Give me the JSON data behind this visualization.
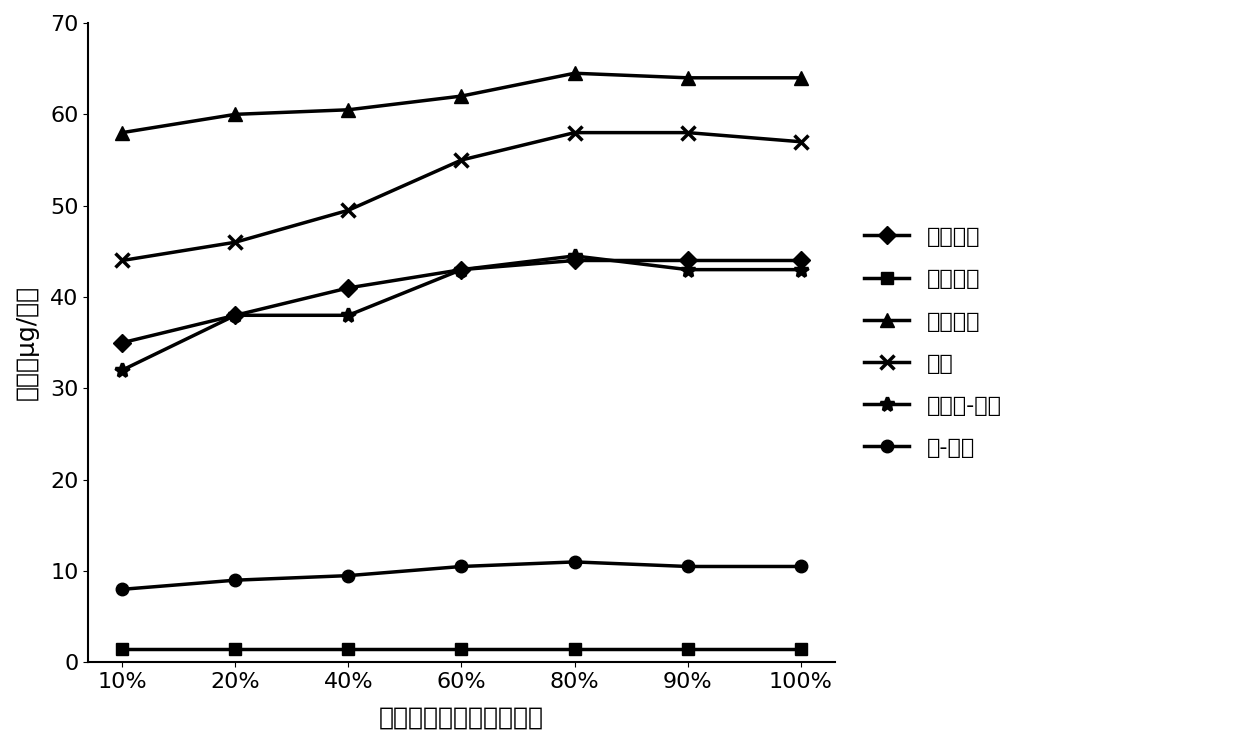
{
  "x_labels": [
    "10%",
    "20%",
    "40%",
    "60%",
    "80%",
    "90%",
    "100%"
  ],
  "x_values": [
    0,
    1,
    2,
    3,
    4,
    5,
    6
  ],
  "series": [
    {
      "name": "对苯二酚",
      "values": [
        35,
        38,
        41,
        43,
        44,
        44,
        44
      ],
      "marker": "D",
      "color": "#000000",
      "linewidth": 2.5,
      "markersize": 9,
      "markerfacecolor": "#000000"
    },
    {
      "name": "间苯二酚",
      "values": [
        1.5,
        1.5,
        1.5,
        1.5,
        1.5,
        1.5,
        1.5
      ],
      "marker": "s",
      "color": "#000000",
      "linewidth": 2.5,
      "markersize": 9,
      "markerfacecolor": "#000000"
    },
    {
      "name": "邻苯二酚",
      "values": [
        58,
        60,
        60.5,
        62,
        64.5,
        64,
        64
      ],
      "marker": "^",
      "color": "#000000",
      "linewidth": 2.5,
      "markersize": 10,
      "markerfacecolor": "#000000"
    },
    {
      "name": "苯酚",
      "values": [
        44,
        46,
        49.5,
        55,
        58,
        58,
        57
      ],
      "marker": "x",
      "color": "#000000",
      "linewidth": 2.5,
      "markersize": 10,
      "markerfacecolor": "#000000"
    },
    {
      "name": "间、对-甲酚",
      "values": [
        32,
        38,
        38,
        43,
        44.5,
        43,
        43
      ],
      "marker": "*",
      "color": "#000000",
      "linewidth": 2.5,
      "markersize": 10,
      "markerfacecolor": "#000000"
    },
    {
      "name": "邻-甲酚",
      "values": [
        8,
        9,
        9.5,
        10.5,
        11,
        10.5,
        10.5
      ],
      "marker": "o",
      "color": "#000000",
      "linewidth": 2.5,
      "markersize": 9,
      "markerfacecolor": "#000000"
    }
  ],
  "ylabel": "含量（μg/支）",
  "xlabel": "萌取液中甲醇的含量比例",
  "ylim": [
    0,
    70
  ],
  "yticks": [
    0,
    10,
    20,
    30,
    40,
    50,
    60,
    70
  ],
  "background_color": "#ffffff",
  "axis_fontsize": 18,
  "tick_fontsize": 16,
  "legend_fontsize": 16
}
